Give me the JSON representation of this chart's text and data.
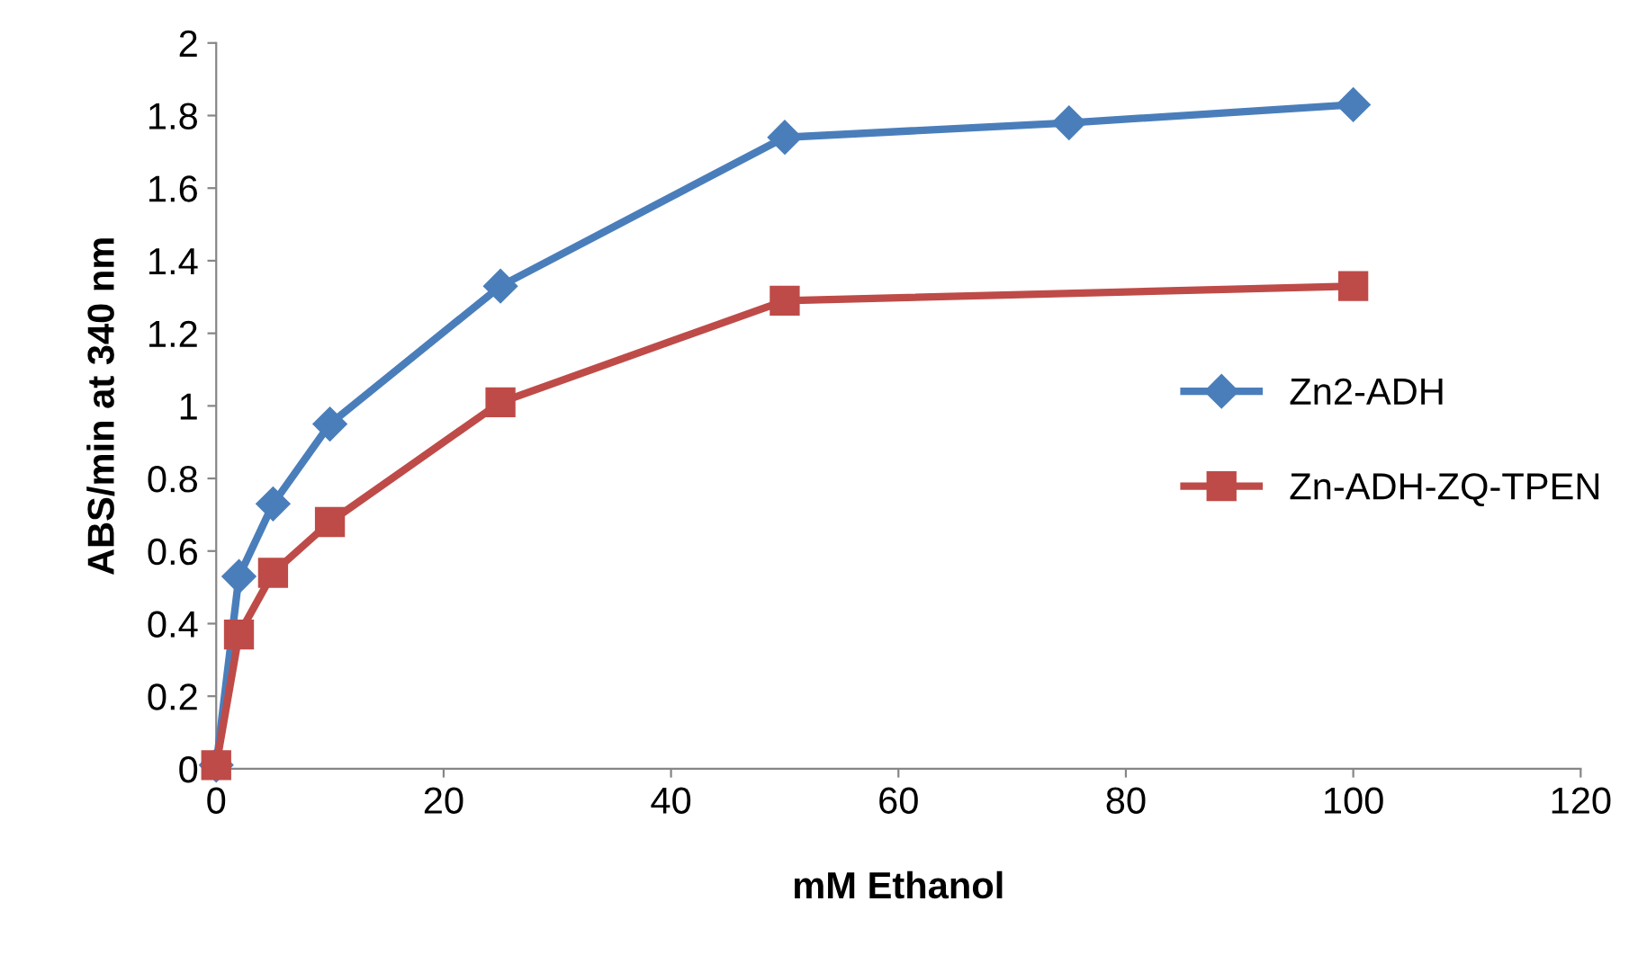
{
  "chart_data": {
    "type": "line",
    "xlabel": "mM Ethanol",
    "ylabel": "ABS/min at 340 nm",
    "xlim": [
      0,
      120
    ],
    "xticks": [
      0,
      20,
      40,
      60,
      80,
      100,
      120
    ],
    "ylim": [
      0,
      2
    ],
    "yticks": [
      0,
      0.2,
      0.4,
      0.6,
      0.8,
      1,
      1.2,
      1.4,
      1.6,
      1.8,
      2
    ],
    "grid": false,
    "legend": "right",
    "line_style": "solid",
    "series": [
      {
        "name": "Zn2-ADH",
        "color": "#4a7ebb",
        "marker": "diamond",
        "x": [
          0,
          2,
          5,
          10,
          25,
          50,
          75,
          100
        ],
        "values": [
          0.01,
          0.53,
          0.73,
          0.95,
          1.33,
          1.74,
          1.78,
          1.83
        ]
      },
      {
        "name": "Zn-ADH-ZQ-TPEN",
        "color": "#be4b48",
        "marker": "square",
        "x": [
          0,
          2,
          5,
          10,
          25,
          50,
          100
        ],
        "values": [
          0.01,
          0.37,
          0.54,
          0.68,
          1.01,
          1.29,
          1.33
        ]
      }
    ]
  }
}
